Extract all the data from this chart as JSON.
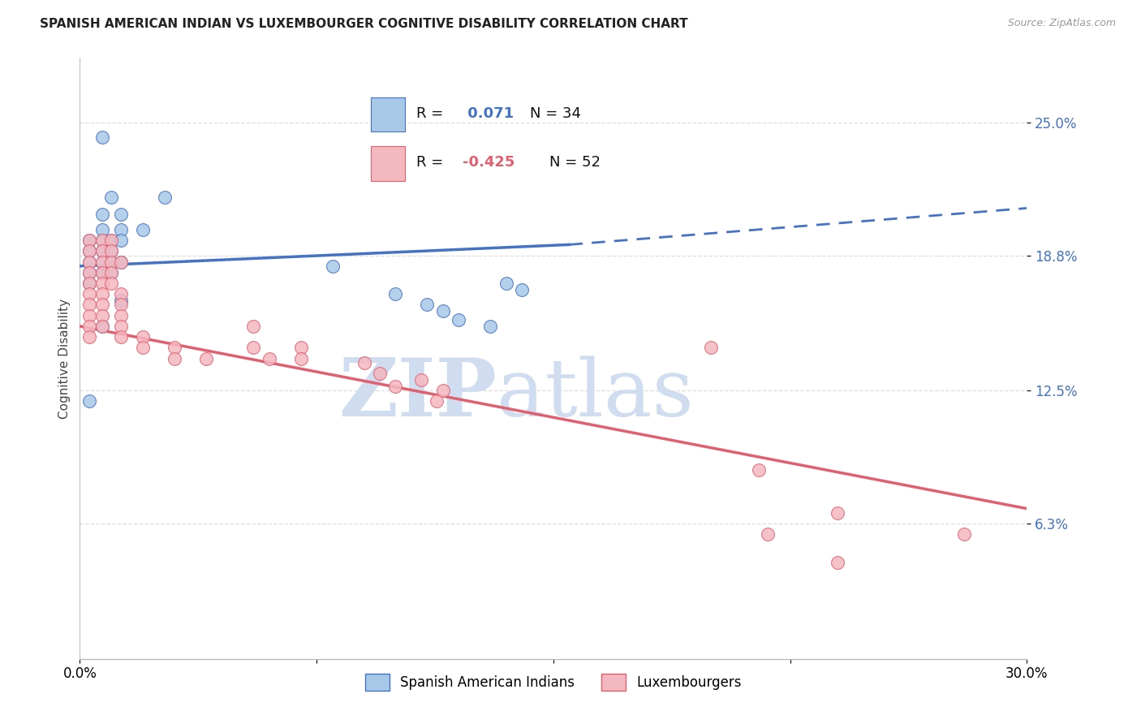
{
  "title": "SPANISH AMERICAN INDIAN VS LUXEMBOURGER COGNITIVE DISABILITY CORRELATION CHART",
  "source": "Source: ZipAtlas.com",
  "ylabel": "Cognitive Disability",
  "xlim": [
    0.0,
    0.3
  ],
  "ylim": [
    0.0,
    0.28
  ],
  "ytick_vals": [
    0.063,
    0.125,
    0.188,
    0.25
  ],
  "ytick_labels": [
    "6.3%",
    "12.5%",
    "18.8%",
    "25.0%"
  ],
  "xtick_vals": [
    0.0,
    0.075,
    0.15,
    0.225,
    0.3
  ],
  "xtick_labels": [
    "0.0%",
    "",
    "",
    "",
    "30.0%"
  ],
  "r_spanish": 0.071,
  "n_spanish": 34,
  "r_luxembourger": -0.425,
  "n_luxembourger": 52,
  "spanish_color": "#a8c8e8",
  "luxembourger_color": "#f4b8c0",
  "trendline_spanish_color": "#4472c4",
  "trendline_luxembourger_color": "#e06070",
  "watermark_color": "#d0ddf0",
  "background_color": "#ffffff",
  "grid_color": "#dddddd",
  "spanish_trendline_x": [
    0.0,
    0.155,
    0.3
  ],
  "spanish_trendline_solid_end": 0.155,
  "spanish_trendline_y_start": 0.183,
  "spanish_trendline_y_mid": 0.193,
  "spanish_trendline_y_end": 0.21,
  "luxembourger_trendline_x_start": 0.0,
  "luxembourger_trendline_y_start": 0.155,
  "luxembourger_trendline_x_end": 0.3,
  "luxembourger_trendline_y_end": 0.07,
  "spanish_points": [
    [
      0.007,
      0.243
    ],
    [
      0.01,
      0.215
    ],
    [
      0.027,
      0.215
    ],
    [
      0.007,
      0.207
    ],
    [
      0.013,
      0.207
    ],
    [
      0.007,
      0.2
    ],
    [
      0.013,
      0.2
    ],
    [
      0.02,
      0.2
    ],
    [
      0.003,
      0.195
    ],
    [
      0.007,
      0.195
    ],
    [
      0.01,
      0.195
    ],
    [
      0.013,
      0.195
    ],
    [
      0.003,
      0.19
    ],
    [
      0.007,
      0.19
    ],
    [
      0.01,
      0.19
    ],
    [
      0.003,
      0.185
    ],
    [
      0.007,
      0.185
    ],
    [
      0.01,
      0.185
    ],
    [
      0.013,
      0.185
    ],
    [
      0.003,
      0.18
    ],
    [
      0.007,
      0.18
    ],
    [
      0.01,
      0.18
    ],
    [
      0.003,
      0.175
    ],
    [
      0.08,
      0.183
    ],
    [
      0.013,
      0.167
    ],
    [
      0.003,
      0.12
    ],
    [
      0.1,
      0.17
    ],
    [
      0.11,
      0.165
    ],
    [
      0.115,
      0.162
    ],
    [
      0.12,
      0.158
    ],
    [
      0.13,
      0.155
    ],
    [
      0.135,
      0.175
    ],
    [
      0.007,
      0.155
    ],
    [
      0.14,
      0.172
    ]
  ],
  "luxembourger_points": [
    [
      0.003,
      0.195
    ],
    [
      0.007,
      0.195
    ],
    [
      0.01,
      0.195
    ],
    [
      0.003,
      0.19
    ],
    [
      0.007,
      0.19
    ],
    [
      0.01,
      0.19
    ],
    [
      0.003,
      0.185
    ],
    [
      0.007,
      0.185
    ],
    [
      0.01,
      0.185
    ],
    [
      0.013,
      0.185
    ],
    [
      0.003,
      0.18
    ],
    [
      0.007,
      0.18
    ],
    [
      0.01,
      0.18
    ],
    [
      0.003,
      0.175
    ],
    [
      0.007,
      0.175
    ],
    [
      0.01,
      0.175
    ],
    [
      0.003,
      0.17
    ],
    [
      0.007,
      0.17
    ],
    [
      0.013,
      0.17
    ],
    [
      0.003,
      0.165
    ],
    [
      0.007,
      0.165
    ],
    [
      0.013,
      0.165
    ],
    [
      0.003,
      0.16
    ],
    [
      0.007,
      0.16
    ],
    [
      0.013,
      0.16
    ],
    [
      0.003,
      0.155
    ],
    [
      0.007,
      0.155
    ],
    [
      0.013,
      0.155
    ],
    [
      0.003,
      0.15
    ],
    [
      0.013,
      0.15
    ],
    [
      0.02,
      0.15
    ],
    [
      0.02,
      0.145
    ],
    [
      0.03,
      0.145
    ],
    [
      0.03,
      0.14
    ],
    [
      0.04,
      0.14
    ],
    [
      0.055,
      0.155
    ],
    [
      0.055,
      0.145
    ],
    [
      0.06,
      0.14
    ],
    [
      0.07,
      0.145
    ],
    [
      0.07,
      0.14
    ],
    [
      0.09,
      0.138
    ],
    [
      0.095,
      0.133
    ],
    [
      0.1,
      0.127
    ],
    [
      0.108,
      0.13
    ],
    [
      0.113,
      0.12
    ],
    [
      0.115,
      0.125
    ],
    [
      0.2,
      0.145
    ],
    [
      0.215,
      0.088
    ],
    [
      0.218,
      0.058
    ],
    [
      0.24,
      0.068
    ],
    [
      0.24,
      0.045
    ],
    [
      0.28,
      0.058
    ]
  ],
  "fig_width": 14.06,
  "fig_height": 8.92,
  "dpi": 100
}
